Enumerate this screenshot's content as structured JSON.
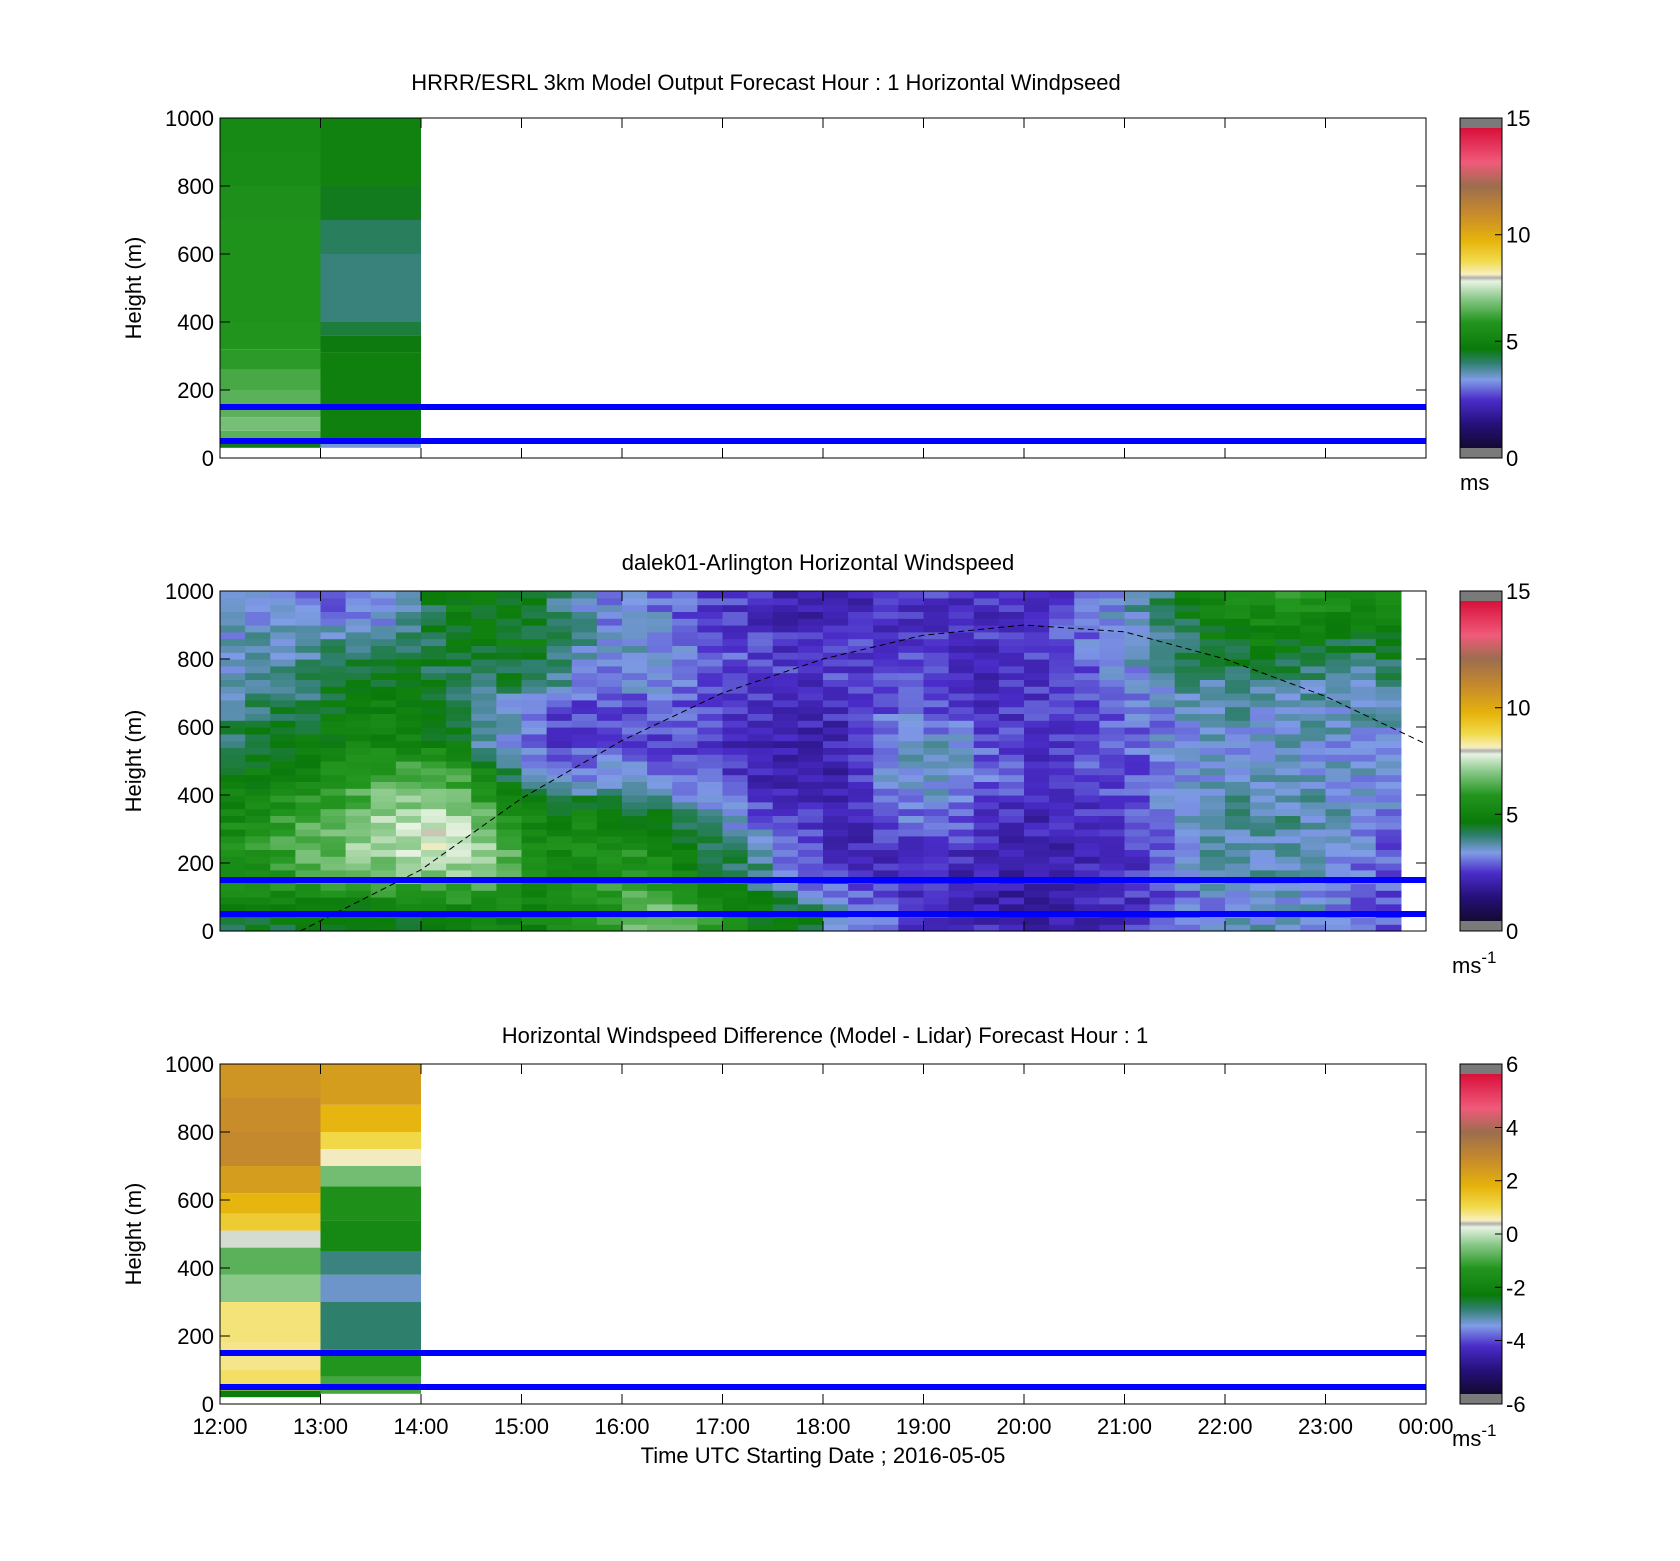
{
  "figure": {
    "xlabel": "Time UTC  Starting Date ; 2016-05-05",
    "xticks": [
      "12:00",
      "13:00",
      "14:00",
      "15:00",
      "16:00",
      "17:00",
      "18:00",
      "19:00",
      "20:00",
      "21:00",
      "22:00",
      "23:00",
      "00:00"
    ],
    "reference_lines_m": [
      150,
      50
    ],
    "reference_line_color": "#0000ff"
  },
  "chart_data": [
    {
      "type": "heatmap",
      "title": "HRRR/ESRL 3km Model Output   Forecast Hour : 1 Horizontal Windpseed",
      "ylabel": "Height (m)",
      "ylim": [
        0,
        1000
      ],
      "yticks": [
        "0",
        "200",
        "400",
        "600",
        "800",
        "1000"
      ],
      "xlim_hours": [
        12,
        24
      ],
      "colorbar": {
        "vmin": 0,
        "vmax": 15,
        "ticks": [
          "0",
          "5",
          "10",
          "15"
        ],
        "unit": "ms"
      },
      "columns": [
        {
          "t_start": 12,
          "t_end": 13,
          "bins": [
            {
              "z0": 30,
              "z1": 50,
              "v": 4.5
            },
            {
              "z0": 50,
              "z1": 80,
              "v": 6.5
            },
            {
              "z0": 80,
              "z1": 120,
              "v": 6.8
            },
            {
              "z0": 120,
              "z1": 200,
              "v": 6.5
            },
            {
              "z0": 200,
              "z1": 260,
              "v": 6.3
            },
            {
              "z0": 260,
              "z1": 320,
              "v": 6.0
            },
            {
              "z0": 320,
              "z1": 400,
              "v": 5.8
            },
            {
              "z0": 400,
              "z1": 700,
              "v": 5.7
            },
            {
              "z0": 700,
              "z1": 800,
              "v": 5.6
            },
            {
              "z0": 800,
              "z1": 900,
              "v": 5.4
            },
            {
              "z0": 900,
              "z1": 1000,
              "v": 5.3
            }
          ]
        },
        {
          "t_start": 13,
          "t_end": 14,
          "bins": [
            {
              "z0": 30,
              "z1": 50,
              "v": 3.3
            },
            {
              "z0": 50,
              "z1": 200,
              "v": 4.9
            },
            {
              "z0": 200,
              "z1": 310,
              "v": 4.9
            },
            {
              "z0": 310,
              "z1": 360,
              "v": 4.6
            },
            {
              "z0": 360,
              "z1": 400,
              "v": 4.3
            },
            {
              "z0": 400,
              "z1": 600,
              "v": 3.9
            },
            {
              "z0": 600,
              "z1": 700,
              "v": 4.1
            },
            {
              "z0": 700,
              "z1": 800,
              "v": 4.5
            },
            {
              "z0": 800,
              "z1": 1000,
              "v": 5.0
            }
          ]
        }
      ]
    },
    {
      "type": "heatmap",
      "title": "dalek01-Arlington  Horizontal Windspeed",
      "ylabel": "Height (m)",
      "ylim": [
        0,
        1000
      ],
      "yticks": [
        "0",
        "200",
        "400",
        "600",
        "800",
        "1000"
      ],
      "xlim_hours": [
        12,
        24
      ],
      "data_end_hour": 23.85,
      "colorbar": {
        "vmin": 0,
        "vmax": 15,
        "ticks": [
          "0",
          "5",
          "10",
          "15"
        ],
        "unit": "ms",
        "unit_sup": "-1"
      },
      "boundary_layer_curve": {
        "x_hours": [
          12.8,
          14,
          15,
          16,
          17,
          18,
          19,
          20,
          21,
          22,
          23,
          24
        ],
        "z_m": [
          0,
          180,
          390,
          560,
          700,
          800,
          870,
          900,
          880,
          800,
          690,
          550
        ]
      },
      "value_profiles": [
        {
          "t": 12.25,
          "v": [
            4.5,
            5.5,
            5.6,
            5.3,
            4.8,
            4.3,
            3.9,
            3.6,
            3.4,
            3.3
          ]
        },
        {
          "t": 12.75,
          "v": [
            4.5,
            6.0,
            6.4,
            6.0,
            5.2,
            4.6,
            4.1,
            3.7,
            3.4,
            3.2
          ]
        },
        {
          "t": 13.25,
          "v": [
            4.6,
            6.3,
            6.8,
            6.6,
            5.8,
            5.1,
            4.6,
            4.4,
            3.8,
            2.8
          ]
        },
        {
          "t": 13.75,
          "v": [
            4.7,
            6.6,
            7.4,
            7.2,
            6.4,
            5.3,
            4.9,
            4.7,
            3.9,
            2.8
          ]
        },
        {
          "t": 14.25,
          "v": [
            4.8,
            6.8,
            7.8,
            7.5,
            6.6,
            5.0,
            4.1,
            4.1,
            4.4,
            4.7
          ]
        },
        {
          "t": 14.75,
          "v": [
            5.0,
            6.5,
            6.8,
            6.0,
            4.9,
            3.4,
            3.4,
            4.3,
            4.6,
            4.8
          ]
        },
        {
          "t": 15.25,
          "v": [
            5.0,
            5.2,
            5.2,
            4.6,
            2.8,
            2.4,
            2.7,
            4.1,
            4.7,
            4.2
          ]
        },
        {
          "t": 15.75,
          "v": [
            5.6,
            5.8,
            5.5,
            5.0,
            3.2,
            2.4,
            2.2,
            3.0,
            3.3,
            3.0
          ]
        },
        {
          "t": 16.25,
          "v": [
            6.8,
            6.0,
            5.6,
            4.5,
            3.0,
            2.6,
            2.6,
            3.3,
            3.5,
            3.0
          ]
        },
        {
          "t": 16.75,
          "v": [
            6.4,
            5.0,
            4.6,
            3.5,
            2.7,
            2.5,
            2.6,
            2.8,
            2.8,
            2.6
          ]
        },
        {
          "t": 17.25,
          "v": [
            5.0,
            4.2,
            3.8,
            2.8,
            2.0,
            2.0,
            2.2,
            2.5,
            2.4,
            2.2
          ]
        },
        {
          "t": 17.75,
          "v": [
            4.6,
            3.0,
            2.6,
            2.2,
            1.8,
            1.8,
            2.0,
            2.3,
            2.2,
            1.9
          ]
        },
        {
          "t": 18.25,
          "v": [
            3.2,
            2.2,
            2.0,
            1.9,
            1.9,
            2.0,
            2.1,
            2.4,
            2.3,
            1.8
          ]
        },
        {
          "t": 18.75,
          "v": [
            2.6,
            2.1,
            2.3,
            2.8,
            3.3,
            3.2,
            2.8,
            2.5,
            2.4,
            2.2
          ]
        },
        {
          "t": 19.25,
          "v": [
            2.2,
            2.0,
            2.4,
            3.1,
            3.4,
            3.3,
            2.6,
            2.2,
            2.2,
            2.2
          ]
        },
        {
          "t": 19.75,
          "v": [
            1.9,
            1.7,
            1.8,
            2.2,
            2.6,
            2.5,
            2.2,
            2.1,
            2.2,
            2.2
          ]
        },
        {
          "t": 20.25,
          "v": [
            1.8,
            1.7,
            1.8,
            2.0,
            2.2,
            2.2,
            2.2,
            2.3,
            2.3,
            2.3
          ]
        },
        {
          "t": 20.75,
          "v": [
            2.0,
            2.0,
            2.2,
            2.3,
            2.5,
            2.6,
            2.6,
            2.8,
            3.0,
            3.0
          ]
        },
        {
          "t": 21.25,
          "v": [
            2.2,
            2.2,
            2.4,
            2.6,
            2.8,
            2.8,
            3.0,
            3.3,
            3.6,
            3.8
          ]
        },
        {
          "t": 21.75,
          "v": [
            3.0,
            3.3,
            3.6,
            3.6,
            3.4,
            3.3,
            3.5,
            3.8,
            4.3,
            4.8
          ]
        },
        {
          "t": 22.25,
          "v": [
            3.4,
            3.5,
            3.6,
            3.7,
            3.4,
            3.3,
            3.5,
            3.9,
            4.8,
            5.4
          ]
        },
        {
          "t": 22.75,
          "v": [
            3.3,
            3.4,
            3.5,
            3.6,
            3.4,
            3.3,
            3.5,
            3.9,
            4.8,
            5.8
          ]
        },
        {
          "t": 23.25,
          "v": [
            2.8,
            3.0,
            3.1,
            3.3,
            3.3,
            3.2,
            3.4,
            3.6,
            4.2,
            5.3
          ]
        },
        {
          "t": 23.75,
          "v": [
            2.4,
            2.5,
            2.6,
            2.8,
            3.0,
            3.2,
            3.6,
            4.0,
            4.6,
            5.2
          ]
        }
      ],
      "profile_levels_m": [
        50,
        150,
        250,
        350,
        450,
        550,
        650,
        750,
        850,
        950
      ]
    },
    {
      "type": "heatmap",
      "title": "Horizontal Windspeed Difference (Model - Lidar) Forecast Hour : 1",
      "ylabel": "Height (m)",
      "ylim": [
        0,
        1000
      ],
      "yticks": [
        "0",
        "200",
        "400",
        "600",
        "800",
        "1000"
      ],
      "xlim_hours": [
        12,
        24
      ],
      "colorbar": {
        "vmin": -6,
        "vmax": 6,
        "ticks": [
          "-6",
          "-4",
          "-2",
          "0",
          "2",
          "4",
          "6"
        ],
        "unit": "ms",
        "unit_sup": "-1"
      },
      "columns": [
        {
          "t_start": 12,
          "t_end": 13,
          "bins": [
            {
              "z0": 20,
              "z1": 40,
              "v": -2.2
            },
            {
              "z0": 40,
              "z1": 100,
              "v": 1.0
            },
            {
              "z0": 100,
              "z1": 180,
              "v": 0.8
            },
            {
              "z0": 180,
              "z1": 300,
              "v": 0.9
            },
            {
              "z0": 300,
              "z1": 380,
              "v": -0.4
            },
            {
              "z0": 380,
              "z1": 460,
              "v": -0.8
            },
            {
              "z0": 460,
              "z1": 510,
              "v": 0.3
            },
            {
              "z0": 510,
              "z1": 560,
              "v": 1.5
            },
            {
              "z0": 560,
              "z1": 620,
              "v": 2.0
            },
            {
              "z0": 620,
              "z1": 700,
              "v": 2.6
            },
            {
              "z0": 700,
              "z1": 800,
              "v": 3.1
            },
            {
              "z0": 800,
              "z1": 900,
              "v": 3.0
            },
            {
              "z0": 900,
              "z1": 1000,
              "v": 2.8
            }
          ]
        },
        {
          "t_start": 13,
          "t_end": 14,
          "bins": [
            {
              "z0": 30,
              "z1": 80,
              "v": -1.0
            },
            {
              "z0": 80,
              "z1": 160,
              "v": -1.3
            },
            {
              "z0": 160,
              "z1": 300,
              "v": -2.8
            },
            {
              "z0": 300,
              "z1": 380,
              "v": -3.3
            },
            {
              "z0": 380,
              "z1": 450,
              "v": -2.9
            },
            {
              "z0": 450,
              "z1": 540,
              "v": -1.8
            },
            {
              "z0": 540,
              "z1": 640,
              "v": -1.5
            },
            {
              "z0": 640,
              "z1": 700,
              "v": -0.6
            },
            {
              "z0": 700,
              "z1": 750,
              "v": 0.5
            },
            {
              "z0": 750,
              "z1": 800,
              "v": 1.2
            },
            {
              "z0": 800,
              "z1": 880,
              "v": 2.0
            },
            {
              "z0": 880,
              "z1": 1000,
              "v": 2.6
            }
          ]
        }
      ]
    }
  ]
}
